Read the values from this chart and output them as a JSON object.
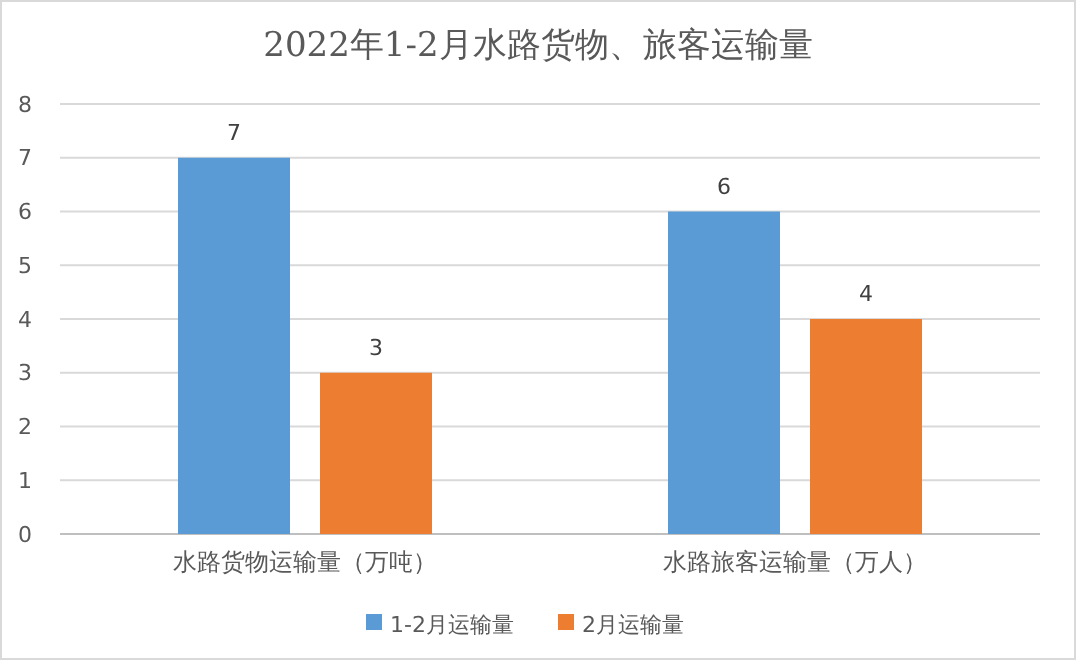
{
  "chart_data": {
    "type": "bar",
    "title": "2022年1-2月水路货物、旅客运输量",
    "categories": [
      "水路货物运输量（万吨）",
      "水路旅客运输量（万人）"
    ],
    "series": [
      {
        "name": "1-2月运输量",
        "color": "#5b9bd5",
        "values": [
          7,
          6
        ]
      },
      {
        "name": "2月运输量",
        "color": "#ed7d31",
        "values": [
          3,
          4
        ]
      }
    ],
    "ylim": [
      0,
      8
    ],
    "yticks": [
      0,
      1,
      2,
      3,
      4,
      5,
      6,
      7,
      8
    ],
    "grid": "y",
    "legend": "bottom",
    "data_labels": true
  }
}
